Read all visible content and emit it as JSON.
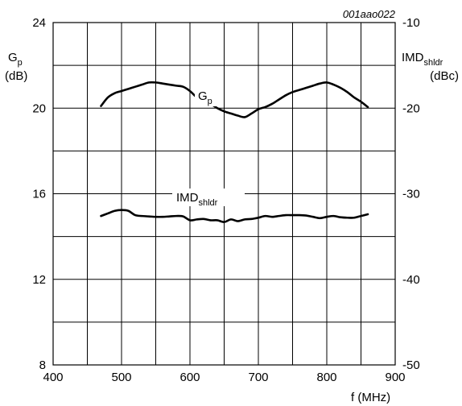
{
  "chart_data": {
    "type": "line",
    "figure_code": "001aao022",
    "x_axis": {
      "label_main": "f (MHz)",
      "range": [
        400,
        900
      ],
      "ticks": [
        400,
        500,
        600,
        700,
        800,
        900
      ],
      "minor_step": 50
    },
    "y_left": {
      "label_line1_main": "G",
      "label_line1_sub": "p",
      "label_line2": "(dB)",
      "range": [
        8,
        24
      ],
      "ticks": [
        8,
        12,
        16,
        20,
        24
      ],
      "minor_step": 2
    },
    "y_right": {
      "label_line1_main": "IMD",
      "label_line1_sub": "shldr",
      "label_line2": "(dBc)",
      "range": [
        -50,
        -10
      ],
      "ticks": [
        -50,
        -40,
        -30,
        -20,
        -10
      ]
    },
    "grid": true,
    "series": [
      {
        "name_main": "G",
        "name_sub": "p",
        "axis": "left",
        "x": [
          470,
          480,
          490,
          500,
          510,
          520,
          530,
          540,
          550,
          560,
          570,
          580,
          590,
          600,
          610,
          620,
          630,
          640,
          650,
          660,
          670,
          680,
          690,
          700,
          710,
          720,
          730,
          740,
          750,
          760,
          770,
          780,
          790,
          800,
          810,
          820,
          830,
          840,
          850,
          860
        ],
        "y": [
          20.1,
          20.5,
          20.7,
          20.8,
          20.9,
          21.0,
          21.1,
          21.2,
          21.2,
          21.15,
          21.1,
          21.05,
          21.0,
          20.8,
          20.5,
          20.3,
          20.2,
          20.0,
          19.85,
          19.75,
          19.65,
          19.58,
          19.75,
          19.95,
          20.05,
          20.2,
          20.4,
          20.6,
          20.75,
          20.85,
          20.95,
          21.05,
          21.15,
          21.2,
          21.1,
          20.95,
          20.75,
          20.5,
          20.3,
          20.05
        ]
      },
      {
        "name_main": "IMD",
        "name_sub": "shldr",
        "axis": "right",
        "x": [
          470,
          480,
          490,
          500,
          510,
          520,
          530,
          540,
          550,
          560,
          570,
          580,
          590,
          600,
          610,
          620,
          630,
          640,
          650,
          660,
          670,
          680,
          690,
          700,
          710,
          720,
          730,
          740,
          750,
          760,
          770,
          780,
          790,
          800,
          810,
          820,
          830,
          840,
          850,
          860
        ],
        "y": [
          -32.6,
          -32.3,
          -32.0,
          -31.9,
          -32.0,
          -32.5,
          -32.6,
          -32.65,
          -32.7,
          -32.7,
          -32.65,
          -32.6,
          -32.65,
          -33.1,
          -33.0,
          -32.95,
          -33.1,
          -33.1,
          -33.3,
          -33.0,
          -33.2,
          -33.0,
          -32.95,
          -32.8,
          -32.6,
          -32.7,
          -32.6,
          -32.5,
          -32.5,
          -32.5,
          -32.55,
          -32.7,
          -32.85,
          -32.7,
          -32.6,
          -32.75,
          -32.8,
          -32.8,
          -32.6,
          -32.4
        ]
      }
    ]
  }
}
